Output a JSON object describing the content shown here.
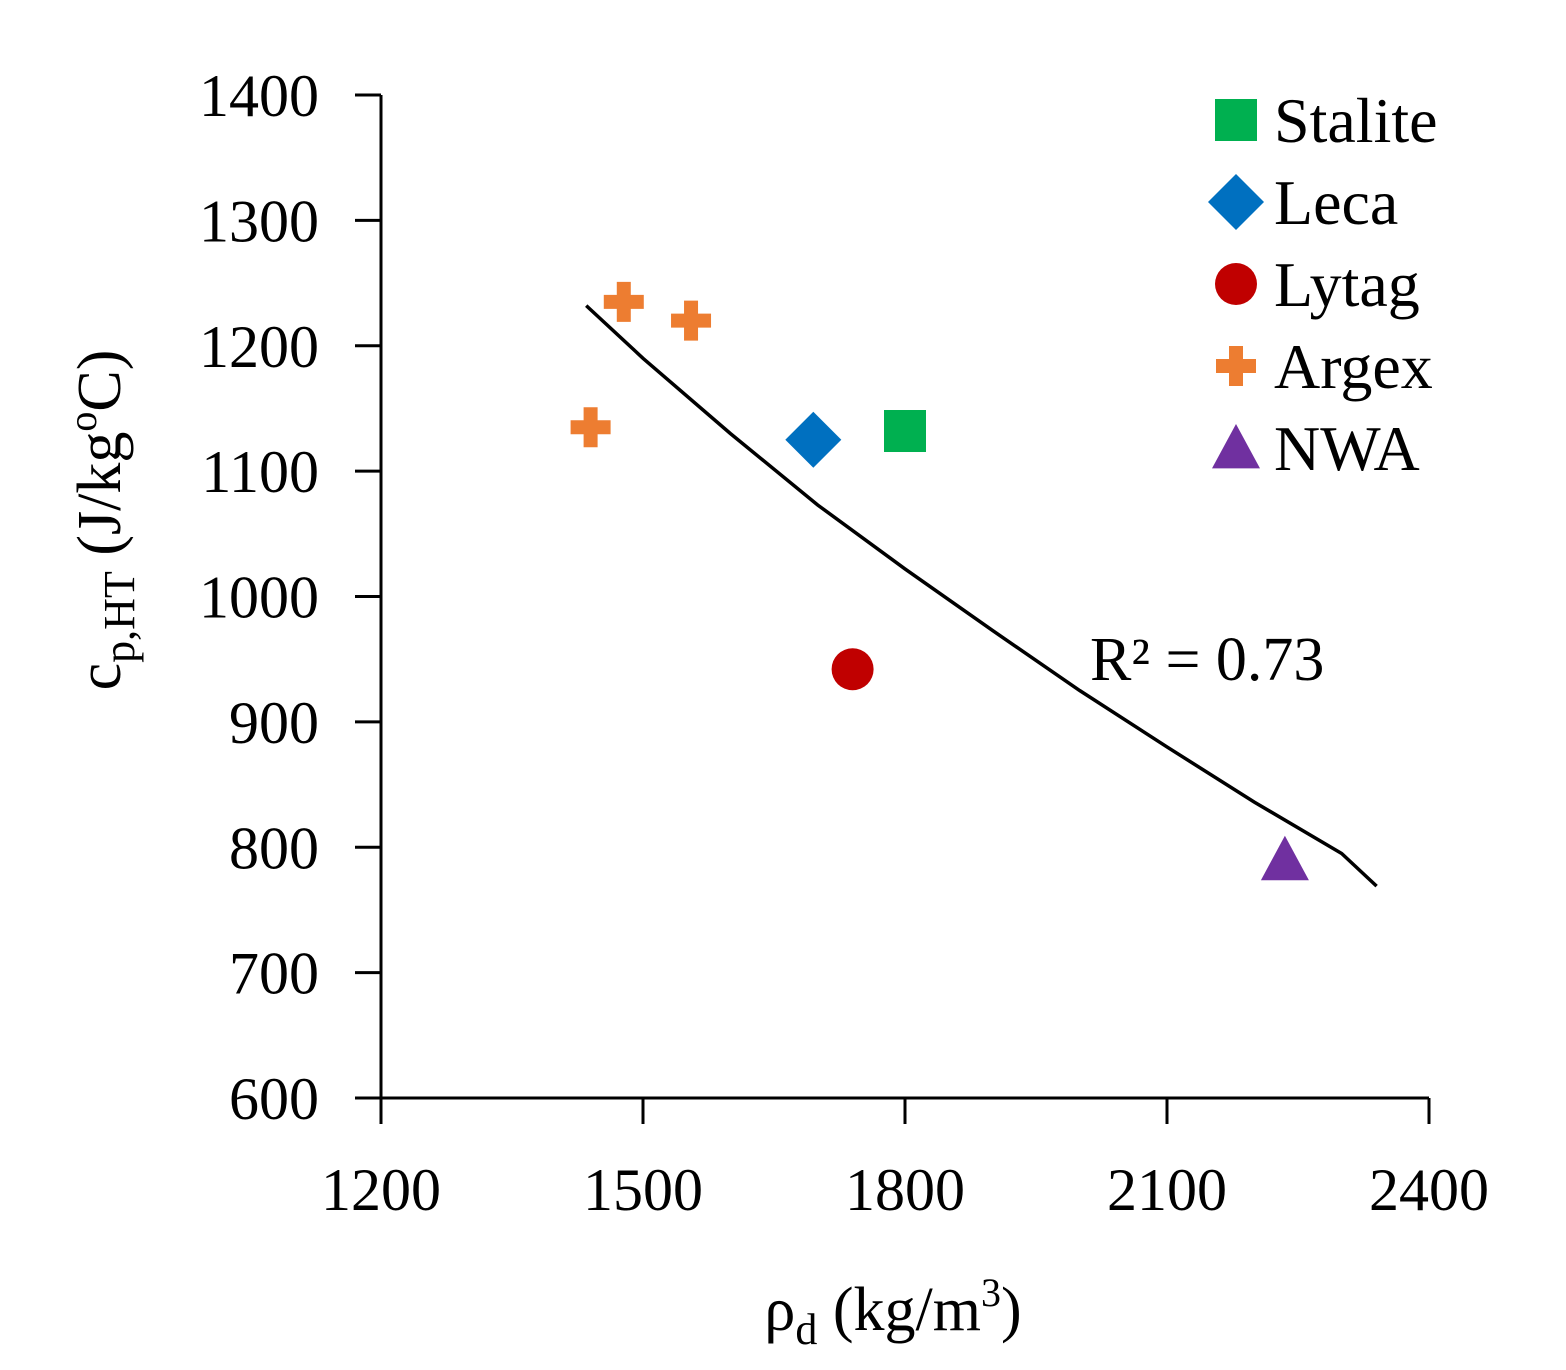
{
  "chart_data": {
    "type": "scatter",
    "xlabel": "ρd (kg/m3)",
    "xlabel_parts": {
      "base": "ρ",
      "sub": "d",
      "rest": " (kg/m",
      "sup": "3",
      "close": ")"
    },
    "ylabel": "cp,HT (J/kgoC)",
    "ylabel_parts": {
      "base": "c",
      "sub": "p,HT",
      "rest": " (J/kg",
      "sup": "o",
      "close": "C)"
    },
    "xlim": [
      1200,
      2400
    ],
    "ylim": [
      600,
      1400
    ],
    "xticks": [
      1200,
      1500,
      1800,
      2100,
      2400
    ],
    "yticks": [
      600,
      700,
      800,
      900,
      1000,
      1100,
      1200,
      1300,
      1400
    ],
    "grid": false,
    "legend_position": "top-right",
    "series": [
      {
        "name": "Stalite",
        "marker": "square",
        "color": "#00B050",
        "points": [
          [
            1800,
            1132
          ]
        ]
      },
      {
        "name": "Leca",
        "marker": "diamond",
        "color": "#0070C0",
        "points": [
          [
            1695,
            1125
          ]
        ]
      },
      {
        "name": "Lytag",
        "marker": "circle",
        "color": "#C00000",
        "points": [
          [
            1740,
            942
          ]
        ]
      },
      {
        "name": "Argex",
        "marker": "plus",
        "color": "#ED7D31",
        "points": [
          [
            1440,
            1135
          ],
          [
            1478,
            1235
          ],
          [
            1555,
            1220
          ]
        ]
      },
      {
        "name": "NWA",
        "marker": "triangle",
        "color": "#7030A0",
        "points": [
          [
            2235,
            790
          ]
        ]
      }
    ],
    "trendline": {
      "color": "#000000",
      "label": "R² = 0.73",
      "points": [
        [
          1435,
          1232
        ],
        [
          1500,
          1190
        ],
        [
          1600,
          1130
        ],
        [
          1700,
          1073
        ],
        [
          1800,
          1022
        ],
        [
          1900,
          973
        ],
        [
          2000,
          925
        ],
        [
          2100,
          880
        ],
        [
          2200,
          836
        ],
        [
          2300,
          795
        ],
        [
          2340,
          769
        ]
      ]
    }
  }
}
